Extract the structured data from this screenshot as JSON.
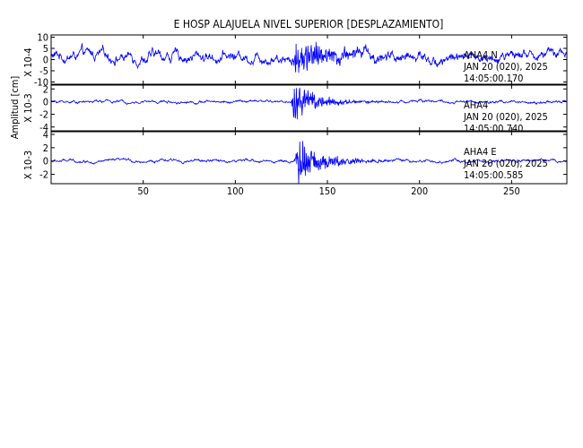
{
  "chart_data": {
    "type": "line",
    "title": "E HOSP ALAJUELA NIVEL SUPERIOR [DESPLAZAMIENTO]",
    "ylabel": "Amplitud [cm]",
    "color": "#0000ff",
    "x": {
      "lim": [
        0,
        280
      ],
      "ticks": [
        50,
        100,
        150,
        200,
        250
      ],
      "tick_labels": [
        "50",
        "100",
        "150",
        "200",
        "250"
      ]
    },
    "panels": [
      {
        "scale_label": "X 10-4",
        "ylim": [
          -11,
          11
        ],
        "yticks": [
          10,
          5,
          0,
          -5,
          -10
        ],
        "ytick_labels": [
          "10",
          "5",
          "0",
          "-5",
          "-10"
        ],
        "station": "AHA4",
        "component": "N",
        "date": "JAN 20 (020), 2025",
        "time": "14:05:00.170",
        "signal": {
          "baseline": 1.5,
          "noise": 4,
          "event_amp": 6,
          "event_center": 133,
          "event_width": 10,
          "decay": 20
        }
      },
      {
        "scale_label": "X 10-3",
        "ylim": [
          -4.6,
          2.6
        ],
        "yticks": [
          2,
          0,
          -2,
          -4
        ],
        "ytick_labels": [
          "2",
          "0",
          "-2",
          "-4"
        ],
        "station": "AHA4",
        "component": "",
        "date": "JAN 20 (020), 2025",
        "time": "14:05:00.740",
        "signal": {
          "baseline": 0,
          "noise": 0.35,
          "event_amp": 2.4,
          "event_center": 132,
          "event_width": 3,
          "decay": 12
        }
      },
      {
        "scale_label": "X 10-3",
        "ylim": [
          -3.4,
          4.4
        ],
        "yticks": [
          4,
          2,
          0,
          -2
        ],
        "ytick_labels": [
          "4",
          "2",
          "0",
          "-2"
        ],
        "station": "AHA4",
        "component": "E",
        "date": "JAN 20 (020), 2025",
        "time": "14:05:00.585",
        "signal": {
          "baseline": 0,
          "noise": 0.35,
          "event_amp": 2.8,
          "event_center": 134,
          "event_width": 3,
          "decay": 13
        }
      }
    ]
  }
}
